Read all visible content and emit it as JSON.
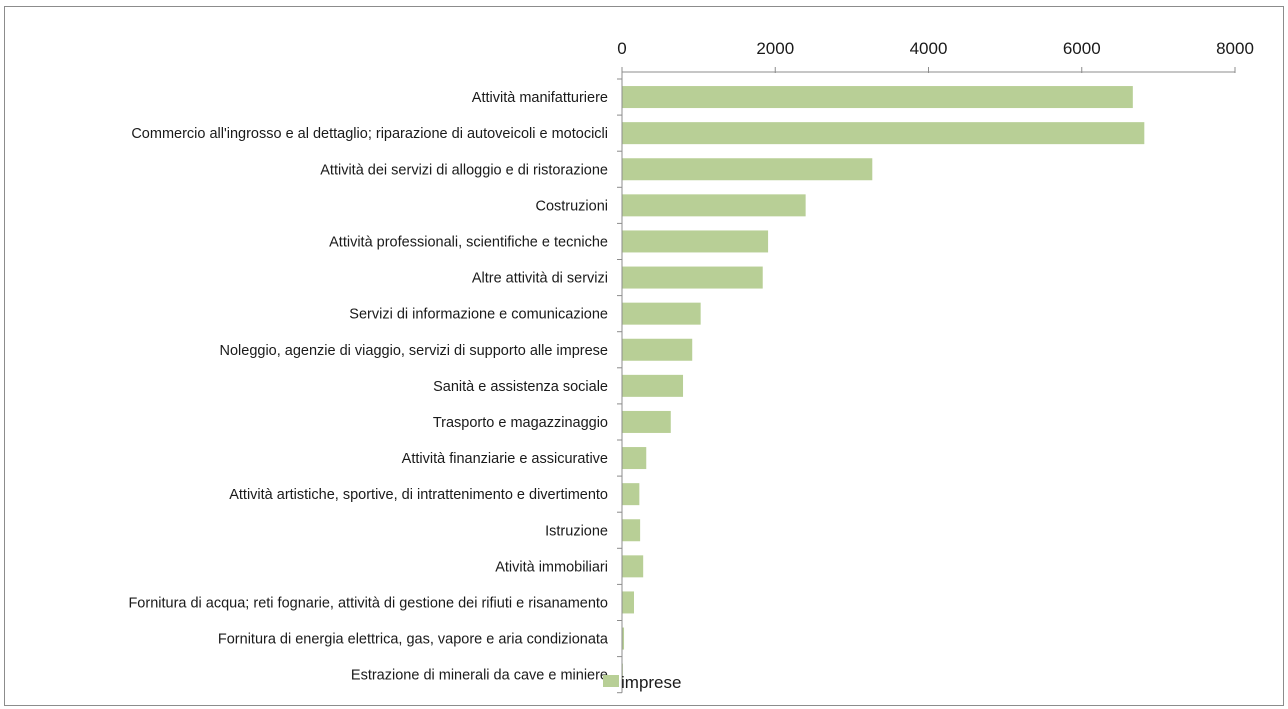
{
  "chart_data": {
    "type": "bar",
    "orientation": "horizontal",
    "categories": [
      "Attività manifatturiere",
      "Commercio all'ingrosso e al dettaglio; riparazione di autoveicoli e motocicli",
      "Attività dei servizi di alloggio e di ristorazione",
      "Costruzioni",
      "Attività professionali, scientifiche e tecniche",
      "Altre attività di servizi",
      "Servizi di informazione e comunicazione",
      "Noleggio, agenzie di viaggio, servizi di supporto alle imprese",
      "Sanità e assistenza sociale",
      "Trasporto e magazzinaggio",
      "Attività finanziarie e assicurative",
      "Attività artistiche, sportive, di intrattenimento e divertimento",
      "Istruzione",
      "Atività immobiliari",
      "Fornitura di acqua; reti fognarie, attività di gestione dei rifiuti e risanamento",
      "Fornitura di energia elettrica, gas, vapore e aria condizionata",
      "Estrazione di minerali da cave e miniere"
    ],
    "series": [
      {
        "name": "imprese",
        "color": "#b8cf96",
        "values": [
          6660,
          6810,
          3260,
          2390,
          1900,
          1830,
          1020,
          910,
          790,
          630,
          310,
          220,
          230,
          270,
          150,
          20,
          5
        ]
      }
    ],
    "xlim": [
      0,
      8000
    ],
    "xticks": [
      "0",
      "2000",
      "4000",
      "6000",
      "8000"
    ],
    "xtick_values": [
      0,
      2000,
      4000,
      6000,
      8000
    ],
    "axis_position": "top",
    "grid": false,
    "legend": {
      "position": "bottom-left"
    },
    "title": "",
    "xlabel": "",
    "ylabel": ""
  }
}
